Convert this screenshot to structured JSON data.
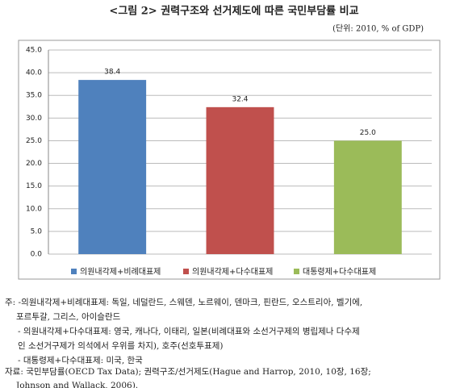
{
  "chart_data": {
    "type": "bar",
    "title": "<그림 2> 권력구조와 선거제도에 따른 국민부담률 비교",
    "subtitle": "(단위: 2010, % of GDP)",
    "series": [
      {
        "name": "의원내각제+비례대표제",
        "color": "#4f81bd",
        "values": [
          38.4
        ],
        "value_labels": [
          "38.4"
        ]
      },
      {
        "name": "의원내각제+다수대표제",
        "color": "#c0504d",
        "values": [
          32.4
        ],
        "value_labels": [
          "32.4"
        ]
      },
      {
        "name": "대통령제+다수대표제",
        "color": "#9bbb59",
        "values": [
          25.0
        ],
        "value_labels": [
          "25.0"
        ]
      }
    ],
    "ylim": [
      0,
      45
    ],
    "yticks": [
      {
        "value": 0,
        "label": "0.0"
      },
      {
        "value": 5,
        "label": "5.0"
      },
      {
        "value": 10,
        "label": "10.0"
      },
      {
        "value": 15,
        "label": "15.0"
      },
      {
        "value": 20,
        "label": "20.0"
      },
      {
        "value": 25,
        "label": "25.0"
      },
      {
        "value": 30,
        "label": "30.0"
      },
      {
        "value": 35,
        "label": "35.0"
      },
      {
        "value": 40,
        "label": "40.0"
      },
      {
        "value": 45,
        "label": "45.0"
      }
    ],
    "grid": true,
    "legend": "bottom"
  },
  "notes": [
    "주: -의원내각제+비례대표제: 독일, 네덜란드, 스웨덴, 노르웨이, 덴마크, 핀란드, 오스트리아, 벨기에,",
    "포르투갈, 그리스, 아이슬란드",
    "- 의원내각제+다수대표제: 영국, 캐나다, 이태리, 일본(비례대표와 소선거구제의 병립제나 다수제",
    "인 소선거구제가 의석에서 우위를 차지), 호주(선호투표제)",
    "- 대통령제+다수대표제: 미국, 한국",
    "자료: 국민부담률(OECD Tax Data); 권력구조/선거제도(Hague and Harrop, 2010, 10장, 16장;",
    "Johnson and Wallack, 2006)."
  ]
}
